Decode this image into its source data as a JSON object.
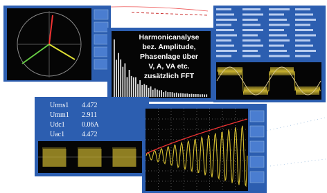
{
  "overlay": {
    "lines": [
      "Harmonicanalyse",
      "bez. Amplitude,",
      "Phasenlage über",
      "V, A, VA etc.",
      "zusätzlich FFT"
    ]
  },
  "measurements": [
    {
      "label": "Urms1",
      "value": "4.472"
    },
    {
      "label": "Umm1",
      "value": "2.911"
    },
    {
      "label": "Udc1",
      "value": "0.06A"
    },
    {
      "label": "Uac1",
      "value": "4.472"
    }
  ]
}
